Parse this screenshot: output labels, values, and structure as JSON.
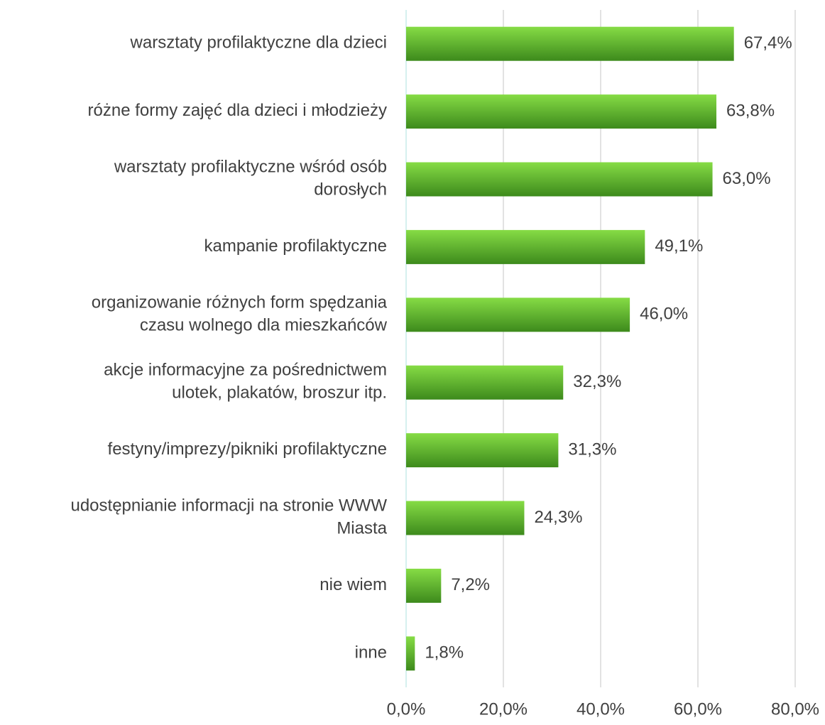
{
  "chart_data": {
    "type": "bar",
    "orientation": "horizontal",
    "categories": [
      "warsztaty profilaktyczne dla dzieci",
      "różne formy zajęć dla dzieci i młodzieży",
      "warsztaty profilaktyczne wśród osób\ndorosłych",
      "kampanie profilaktyczne",
      "organizowanie różnych form spędzania\nczasu wolnego dla mieszkańców",
      "akcje informacyjne za pośrednictwem\nulotek, plakatów, broszur itp.",
      "festyny/imprezy/pikniki profilaktyczne",
      "udostępnianie informacji na stronie WWW\nMiasta",
      "nie wiem",
      "inne"
    ],
    "values": [
      67.4,
      63.8,
      63.0,
      49.1,
      46.0,
      32.3,
      31.3,
      24.3,
      7.2,
      1.8
    ],
    "value_labels": [
      "67,4%",
      "63,8%",
      "63,0%",
      "49,1%",
      "46,0%",
      "32,3%",
      "31,3%",
      "24,3%",
      "7,2%",
      "1,8%"
    ],
    "color": "#5cb82e",
    "xlim": [
      0,
      80
    ],
    "xticks": [
      {
        "value": 0,
        "label": "0,0%"
      },
      {
        "value": 20,
        "label": "20,0%"
      },
      {
        "value": 40,
        "label": "40,0%"
      },
      {
        "value": 60,
        "label": "60,0%"
      },
      {
        "value": 80,
        "label": "80,0%"
      }
    ],
    "grid": true
  }
}
